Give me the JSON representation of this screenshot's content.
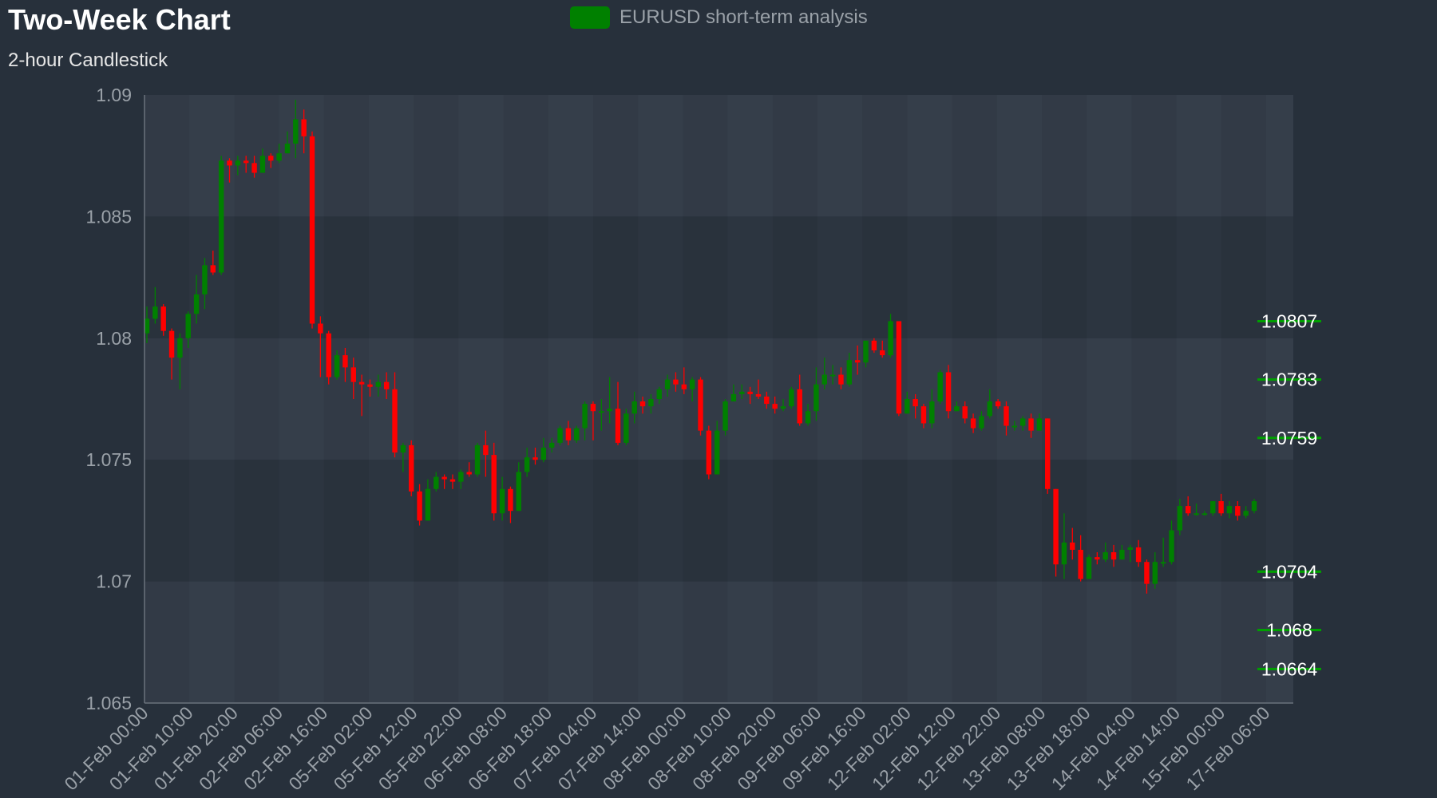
{
  "title": "Two-Week Chart",
  "subtitle": "2-hour Candlestick",
  "legend": {
    "label": "EURUSD short-term analysis",
    "color": "#008000"
  },
  "colors": {
    "up": "#008000",
    "down": "#ff0000",
    "level_line": "#00a000",
    "level_text": "#ffffff",
    "axis_text": "#9aa1a8"
  },
  "chart_data": {
    "type": "candlestick",
    "title": "Two-Week Chart",
    "subtitle": "2-hour Candlestick",
    "series_name": "EURUSD short-term analysis",
    "ylim": [
      1.065,
      1.09
    ],
    "y_ticks": [
      "1.09",
      "1.085",
      "1.08",
      "1.075",
      "1.07",
      "1.065"
    ],
    "x_ticks": [
      "01-Feb 00:00",
      "01-Feb 10:00",
      "01-Feb 20:00",
      "02-Feb 06:00",
      "02-Feb 16:00",
      "05-Feb 02:00",
      "05-Feb 12:00",
      "05-Feb 22:00",
      "06-Feb 08:00",
      "06-Feb 18:00",
      "07-Feb 04:00",
      "07-Feb 14:00",
      "08-Feb 00:00",
      "08-Feb 10:00",
      "08-Feb 20:00",
      "09-Feb 06:00",
      "09-Feb 16:00",
      "12-Feb 02:00",
      "12-Feb 12:00",
      "12-Feb 22:00",
      "13-Feb 08:00",
      "13-Feb 18:00",
      "14-Feb 04:00",
      "14-Feb 14:00",
      "15-Feb 00:00",
      "17-Feb 06:00"
    ],
    "grid": true,
    "legend_position": "top-center",
    "levels": [
      1.0807,
      1.0783,
      1.0759,
      1.0704,
      1.068,
      1.0664
    ],
    "level_labels": [
      "1.0807",
      "1.0783",
      "1.0759",
      "1.0704",
      "1.068",
      "1.0664"
    ],
    "candles": [
      [
        1.0802,
        1.0808,
        1.0798,
        1.0813
      ],
      [
        1.0808,
        1.0813,
        1.0806,
        1.0821
      ],
      [
        1.0813,
        1.0803,
        1.0801,
        1.0814
      ],
      [
        1.0803,
        1.0792,
        1.0783,
        1.0804
      ],
      [
        1.0792,
        1.08,
        1.0779,
        1.0802
      ],
      [
        1.08,
        1.081,
        1.0796,
        1.0811
      ],
      [
        1.081,
        1.0818,
        1.0806,
        1.0826
      ],
      [
        1.0818,
        1.083,
        1.0812,
        1.0833
      ],
      [
        1.083,
        1.0827,
        1.0826,
        1.0836
      ],
      [
        1.0827,
        1.0873,
        1.0826,
        1.0875
      ],
      [
        1.0873,
        1.0871,
        1.0864,
        1.0874
      ],
      [
        1.0871,
        1.0873,
        1.0867,
        1.0875
      ],
      [
        1.0873,
        1.0872,
        1.0868,
        1.0875
      ],
      [
        1.0872,
        1.0868,
        1.0866,
        1.0875
      ],
      [
        1.0868,
        1.0875,
        1.0868,
        1.0878
      ],
      [
        1.0875,
        1.0873,
        1.087,
        1.0876
      ],
      [
        1.0873,
        1.0876,
        1.0872,
        1.088
      ],
      [
        1.0876,
        1.088,
        1.0876,
        1.0885
      ],
      [
        1.088,
        1.089,
        1.0874,
        1.0898
      ],
      [
        1.089,
        1.0883,
        1.0876,
        1.0894
      ],
      [
        1.0883,
        1.0806,
        1.0804,
        1.0885
      ],
      [
        1.0806,
        1.0802,
        1.0784,
        1.0809
      ],
      [
        1.0802,
        1.0784,
        1.0781,
        1.0803
      ],
      [
        1.0784,
        1.0793,
        1.0783,
        1.0795
      ],
      [
        1.0793,
        1.0788,
        1.0782,
        1.0796
      ],
      [
        1.0788,
        1.0782,
        1.0775,
        1.0792
      ],
      [
        1.0782,
        1.0781,
        1.0768,
        1.0785
      ],
      [
        1.0781,
        1.078,
        1.0776,
        1.0783
      ],
      [
        1.078,
        1.0782,
        1.0776,
        1.0785
      ],
      [
        1.0782,
        1.0779,
        1.0775,
        1.0786
      ],
      [
        1.0779,
        1.0753,
        1.0751,
        1.0786
      ],
      [
        1.0753,
        1.0756,
        1.0745,
        1.0757
      ],
      [
        1.0756,
        1.0737,
        1.0735,
        1.0758
      ],
      [
        1.0737,
        1.0725,
        1.0723,
        1.074
      ],
      [
        1.0725,
        1.0738,
        1.0725,
        1.0742
      ],
      [
        1.0738,
        1.0743,
        1.0737,
        1.0745
      ],
      [
        1.0743,
        1.0742,
        1.0738,
        1.0744
      ],
      [
        1.0742,
        1.0741,
        1.0738,
        1.0744
      ],
      [
        1.0741,
        1.0745,
        1.0738,
        1.0746
      ],
      [
        1.0745,
        1.0744,
        1.0743,
        1.0749
      ],
      [
        1.0744,
        1.0756,
        1.0743,
        1.0757
      ],
      [
        1.0756,
        1.0752,
        1.0743,
        1.0762
      ],
      [
        1.0752,
        1.0728,
        1.0725,
        1.0757
      ],
      [
        1.0728,
        1.0738,
        1.0725,
        1.0743
      ],
      [
        1.0738,
        1.0729,
        1.0724,
        1.0739
      ],
      [
        1.0729,
        1.0745,
        1.0729,
        1.0749
      ],
      [
        1.0745,
        1.0751,
        1.0743,
        1.0755
      ],
      [
        1.0751,
        1.075,
        1.0748,
        1.0755
      ],
      [
        1.075,
        1.0755,
        1.0749,
        1.0759
      ],
      [
        1.0755,
        1.0757,
        1.0753,
        1.0759
      ],
      [
        1.0757,
        1.0763,
        1.0756,
        1.0764
      ],
      [
        1.0763,
        1.0758,
        1.0756,
        1.0766
      ],
      [
        1.0758,
        1.0763,
        1.0757,
        1.0764
      ],
      [
        1.0763,
        1.0773,
        1.0758,
        1.0774
      ],
      [
        1.0773,
        1.077,
        1.0758,
        1.0774
      ],
      [
        1.077,
        1.077,
        1.0762,
        1.0775
      ],
      [
        1.077,
        1.0771,
        1.0765,
        1.0784
      ],
      [
        1.0771,
        1.0757,
        1.0756,
        1.0782
      ],
      [
        1.0757,
        1.0769,
        1.0756,
        1.0771
      ],
      [
        1.0769,
        1.0774,
        1.0765,
        1.0778
      ],
      [
        1.0774,
        1.0772,
        1.0769,
        1.0776
      ],
      [
        1.0772,
        1.0775,
        1.0769,
        1.0777
      ],
      [
        1.0775,
        1.0779,
        1.0773,
        1.078
      ],
      [
        1.0779,
        1.0783,
        1.0776,
        1.0785
      ],
      [
        1.0783,
        1.0781,
        1.0778,
        1.0786
      ],
      [
        1.0781,
        1.0779,
        1.0777,
        1.0788
      ],
      [
        1.0779,
        1.0783,
        1.0774,
        1.0784
      ],
      [
        1.0783,
        1.0762,
        1.076,
        1.0784
      ],
      [
        1.0762,
        1.0744,
        1.0742,
        1.0764
      ],
      [
        1.0744,
        1.0762,
        1.0744,
        1.0766
      ],
      [
        1.0762,
        1.0774,
        1.076,
        1.0775
      ],
      [
        1.0774,
        1.0777,
        1.0774,
        1.0781
      ],
      [
        1.0777,
        1.0778,
        1.0775,
        1.0781
      ],
      [
        1.0778,
        1.0777,
        1.0773,
        1.078
      ],
      [
        1.0777,
        1.0776,
        1.0775,
        1.0783
      ],
      [
        1.0776,
        1.0773,
        1.0771,
        1.0778
      ],
      [
        1.0773,
        1.0771,
        1.0769,
        1.0776
      ],
      [
        1.0771,
        1.0772,
        1.077,
        1.0775
      ],
      [
        1.0772,
        1.0779,
        1.0771,
        1.078
      ],
      [
        1.0779,
        1.0765,
        1.0764,
        1.0785
      ],
      [
        1.0765,
        1.077,
        1.0764,
        1.0773
      ],
      [
        1.077,
        1.0781,
        1.0766,
        1.0788
      ],
      [
        1.0781,
        1.0785,
        1.0779,
        1.0792
      ],
      [
        1.0785,
        1.0785,
        1.0781,
        1.0789
      ],
      [
        1.0785,
        1.0781,
        1.0779,
        1.0788
      ],
      [
        1.0781,
        1.0791,
        1.078,
        1.0794
      ],
      [
        1.0791,
        1.079,
        1.0785,
        1.0797
      ],
      [
        1.079,
        1.0799,
        1.0788,
        1.0799
      ],
      [
        1.0799,
        1.0795,
        1.0794,
        1.08
      ],
      [
        1.0795,
        1.0793,
        1.0792,
        1.0799
      ],
      [
        1.0793,
        1.0807,
        1.0792,
        1.081
      ],
      [
        1.0807,
        1.0769,
        1.0768,
        1.0807
      ],
      [
        1.0769,
        1.0775,
        1.0769,
        1.0778
      ],
      [
        1.0775,
        1.0772,
        1.0767,
        1.0777
      ],
      [
        1.0772,
        1.0765,
        1.0763,
        1.0773
      ],
      [
        1.0765,
        1.0774,
        1.0763,
        1.0779
      ],
      [
        1.0774,
        1.0786,
        1.0773,
        1.0787
      ],
      [
        1.0786,
        1.077,
        1.0767,
        1.0789
      ],
      [
        1.077,
        1.0772,
        1.077,
        1.0774
      ],
      [
        1.0772,
        1.0767,
        1.0765,
        1.0774
      ],
      [
        1.0767,
        1.0763,
        1.0761,
        1.0769
      ],
      [
        1.0763,
        1.0768,
        1.0762,
        1.077
      ],
      [
        1.0768,
        1.0774,
        1.0767,
        1.0779
      ],
      [
        1.0774,
        1.0772,
        1.0771,
        1.0775
      ],
      [
        1.0772,
        1.0764,
        1.076,
        1.0774
      ],
      [
        1.0764,
        1.0764,
        1.0762,
        1.0766
      ],
      [
        1.0764,
        1.0767,
        1.0762,
        1.0768
      ],
      [
        1.0767,
        1.0762,
        1.0759,
        1.0769
      ],
      [
        1.0762,
        1.0767,
        1.0762,
        1.0769
      ],
      [
        1.0767,
        1.0738,
        1.0736,
        1.0767
      ],
      [
        1.0738,
        1.0707,
        1.0702,
        1.0738
      ],
      [
        1.0707,
        1.0716,
        1.0701,
        1.0728
      ],
      [
        1.0716,
        1.0713,
        1.0709,
        1.0722
      ],
      [
        1.0713,
        1.0701,
        1.07,
        1.0719
      ],
      [
        1.0701,
        1.071,
        1.0701,
        1.0711
      ],
      [
        1.071,
        1.0709,
        1.0707,
        1.0712
      ],
      [
        1.0709,
        1.0712,
        1.0708,
        1.0716
      ],
      [
        1.0712,
        1.0709,
        1.0706,
        1.0715
      ],
      [
        1.0709,
        1.0713,
        1.0709,
        1.0715
      ],
      [
        1.0713,
        1.0714,
        1.0708,
        1.0715
      ],
      [
        1.0714,
        1.0708,
        1.0706,
        1.0717
      ],
      [
        1.0708,
        1.0699,
        1.0695,
        1.0709
      ],
      [
        1.0699,
        1.0708,
        1.0697,
        1.0712
      ],
      [
        1.0708,
        1.0708,
        1.0706,
        1.0718
      ],
      [
        1.0708,
        1.0721,
        1.0707,
        1.0725
      ],
      [
        1.0721,
        1.0731,
        1.0719,
        1.0734
      ],
      [
        1.0731,
        1.0728,
        1.0727,
        1.0735
      ],
      [
        1.0728,
        1.0728,
        1.0727,
        1.0732
      ],
      [
        1.0728,
        1.0728,
        1.0727,
        1.0729
      ],
      [
        1.0728,
        1.0733,
        1.0727,
        1.0733
      ],
      [
        1.0733,
        1.0728,
        1.0727,
        1.0736
      ],
      [
        1.0728,
        1.0731,
        1.0726,
        1.0733
      ],
      [
        1.0731,
        1.0727,
        1.0725,
        1.0733
      ],
      [
        1.0727,
        1.0729,
        1.0726,
        1.0731
      ],
      [
        1.0729,
        1.0733,
        1.0728,
        1.0734
      ]
    ]
  }
}
